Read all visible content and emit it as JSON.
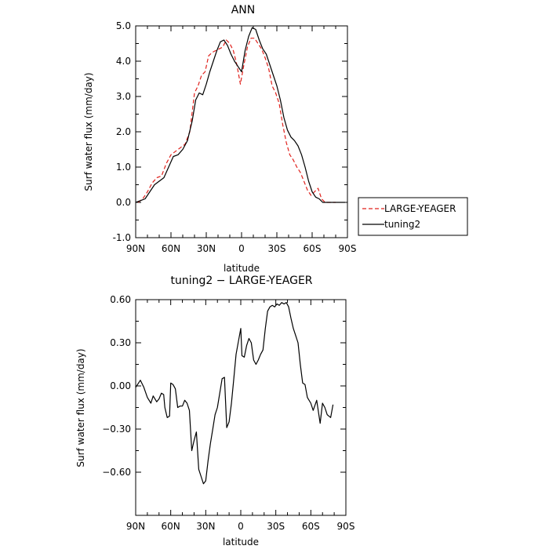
{
  "chart_data": [
    {
      "type": "line",
      "title": "ANN",
      "xlabel": "latitude",
      "ylabel": "Surf water flux (mm/day)",
      "xlim": [
        90,
        -90
      ],
      "ylim": [
        -1.0,
        5.0
      ],
      "x_ticks": [
        90,
        60,
        30,
        0,
        -30,
        -60,
        -90
      ],
      "x_tick_labels": [
        "90N",
        "60N",
        "30N",
        "0",
        "30S",
        "60S",
        "90S"
      ],
      "y_ticks": [
        -1,
        0,
        1,
        2,
        3,
        4,
        5
      ],
      "y_tick_labels": [
        "-1.0",
        "0.0",
        "1.0",
        "2.0",
        "3.0",
        "4.0",
        "5.0"
      ],
      "legend_position": "right",
      "series": [
        {
          "name": "LARGE-YEAGER",
          "color": "#e0201b",
          "style": "dashed",
          "x": [
            88,
            84,
            80,
            76,
            72,
            68,
            64,
            60,
            56,
            52,
            48,
            44,
            40,
            37,
            34,
            31,
            28,
            25,
            22,
            19,
            16,
            13,
            10,
            7,
            4,
            1,
            -2,
            -5,
            -8,
            -11,
            -14,
            -17,
            -20,
            -23,
            -26,
            -29,
            -32,
            -35,
            -38,
            -41,
            -44,
            -47,
            -50,
            -53,
            -56,
            -59,
            -62,
            -65,
            -68,
            -71,
            -74,
            -77,
            -80
          ],
          "y": [
            0.0,
            0.1,
            0.3,
            0.55,
            0.7,
            0.75,
            1.1,
            1.35,
            1.45,
            1.55,
            1.65,
            2.0,
            3.1,
            3.3,
            3.6,
            3.7,
            4.15,
            4.25,
            4.3,
            4.35,
            4.4,
            4.6,
            4.5,
            4.3,
            3.9,
            3.35,
            3.9,
            4.4,
            4.65,
            4.65,
            4.5,
            4.35,
            4.1,
            3.8,
            3.3,
            3.1,
            2.8,
            2.2,
            1.7,
            1.35,
            1.2,
            1.0,
            0.85,
            0.6,
            0.35,
            0.2,
            0.3,
            0.4,
            0.1,
            0.0,
            0.0,
            0.0,
            0.0
          ]
        },
        {
          "name": "tuning2",
          "color": "#000000",
          "style": "solid",
          "x": [
            90,
            86,
            82,
            78,
            74,
            70,
            66,
            62,
            58,
            54,
            50,
            46,
            42,
            39,
            36,
            33,
            30,
            27,
            24,
            21,
            18,
            15,
            12,
            9,
            6,
            3,
            0,
            -3,
            -6,
            -9,
            -12,
            -15,
            -18,
            -21,
            -24,
            -27,
            -30,
            -33,
            -36,
            -39,
            -42,
            -45,
            -48,
            -51,
            -54,
            -57,
            -60,
            -63,
            -66,
            -69,
            -72,
            -75,
            -78,
            -81,
            -84,
            -88
          ],
          "y": [
            0.0,
            0.05,
            0.1,
            0.3,
            0.5,
            0.6,
            0.7,
            1.0,
            1.3,
            1.35,
            1.5,
            1.75,
            2.3,
            2.9,
            3.1,
            3.05,
            3.35,
            3.7,
            4.0,
            4.3,
            4.55,
            4.6,
            4.45,
            4.2,
            4.0,
            3.85,
            3.7,
            4.3,
            4.7,
            4.95,
            4.9,
            4.6,
            4.35,
            4.2,
            3.9,
            3.6,
            3.3,
            2.9,
            2.4,
            2.05,
            1.85,
            1.75,
            1.6,
            1.35,
            1.0,
            0.6,
            0.3,
            0.15,
            0.1,
            0.0,
            0.0,
            0.0,
            0.0,
            0.0,
            0.0,
            0.0
          ]
        }
      ]
    },
    {
      "type": "line",
      "title": "tuning2 − LARGE-YEAGER",
      "xlabel": "latitude",
      "ylabel": "Surf water flux (mm/day)",
      "xlim": [
        90,
        -90
      ],
      "ylim": [
        -0.9,
        0.6
      ],
      "x_ticks": [
        90,
        60,
        30,
        0,
        -30,
        -60,
        -90
      ],
      "x_tick_labels": [
        "90N",
        "60N",
        "30N",
        "0",
        "30S",
        "60S",
        "90S"
      ],
      "y_ticks": [
        -0.6,
        -0.3,
        0.0,
        0.3,
        0.6
      ],
      "y_tick_labels": [
        "−0.60",
        "−0.30",
        "0.00",
        "0.30",
        "0.60"
      ],
      "series": [
        {
          "color": "#000000",
          "style": "solid",
          "x": [
            90,
            86,
            83,
            80,
            77,
            75,
            72,
            70,
            68,
            66,
            65,
            63,
            61,
            60,
            58,
            56,
            54,
            52,
            50,
            48,
            46,
            44,
            42,
            40,
            38,
            36,
            34,
            32,
            30,
            28,
            26,
            24,
            22,
            20,
            18,
            16,
            14,
            12,
            10,
            8,
            6,
            4,
            2,
            0,
            -1,
            -3,
            -5,
            -7,
            -9,
            -11,
            -13,
            -15,
            -17,
            -19,
            -21,
            -23,
            -25,
            -27,
            -29,
            -31,
            -33,
            -35,
            -37,
            -39,
            -41,
            -43,
            -45,
            -47,
            -49,
            -51,
            -53,
            -55,
            -57,
            -60,
            -62,
            -65,
            -68,
            -70,
            -72,
            -74,
            -77,
            -79
          ],
          "y": [
            -0.01,
            0.04,
            -0.01,
            -0.08,
            -0.12,
            -0.07,
            -0.11,
            -0.09,
            -0.05,
            -0.06,
            -0.15,
            -0.22,
            -0.21,
            0.02,
            0.01,
            -0.02,
            -0.15,
            -0.14,
            -0.14,
            -0.1,
            -0.12,
            -0.17,
            -0.45,
            -0.38,
            -0.32,
            -0.58,
            -0.63,
            -0.68,
            -0.66,
            -0.52,
            -0.4,
            -0.3,
            -0.2,
            -0.15,
            -0.05,
            0.05,
            0.06,
            -0.29,
            -0.25,
            -0.12,
            0.05,
            0.22,
            0.31,
            0.4,
            0.21,
            0.2,
            0.28,
            0.33,
            0.3,
            0.18,
            0.15,
            0.18,
            0.22,
            0.25,
            0.4,
            0.52,
            0.55,
            0.56,
            0.55,
            0.57,
            0.56,
            0.58,
            0.57,
            0.58,
            0.55,
            0.47,
            0.4,
            0.35,
            0.3,
            0.15,
            0.02,
            0.01,
            -0.08,
            -0.12,
            -0.17,
            -0.1,
            -0.26,
            -0.12,
            -0.15,
            -0.2,
            -0.22,
            -0.13
          ]
        }
      ]
    }
  ]
}
